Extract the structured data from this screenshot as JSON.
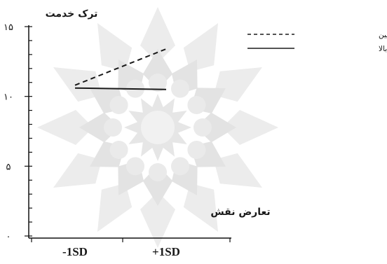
{
  "chart_data": {
    "type": "line",
    "ylabel": "ترک خدمت",
    "xlabel": "تعارض نقش",
    "categories": [
      "-1SD",
      "+1SD"
    ],
    "yticks": [
      {
        "value": 0,
        "label": "۰"
      },
      {
        "value": 5,
        "label": "۵"
      },
      {
        "value": 10,
        "label": "۱۰"
      },
      {
        "value": 15,
        "label": "۱۵"
      }
    ],
    "ylim": [
      0,
      15
    ],
    "grid": false,
    "legend_position": "top-right",
    "series": [
      {
        "name": "نیاز به قدرت  پایین",
        "values": [
          10.8,
          13.4
        ],
        "style": "dashed",
        "color": "#1a1a1a"
      },
      {
        "name": "نیاز به قدرت بالا",
        "values": [
          10.6,
          10.5
        ],
        "style": "solid",
        "color": "#1a1a1a"
      }
    ],
    "watermark": "decorative-star-rosette"
  }
}
